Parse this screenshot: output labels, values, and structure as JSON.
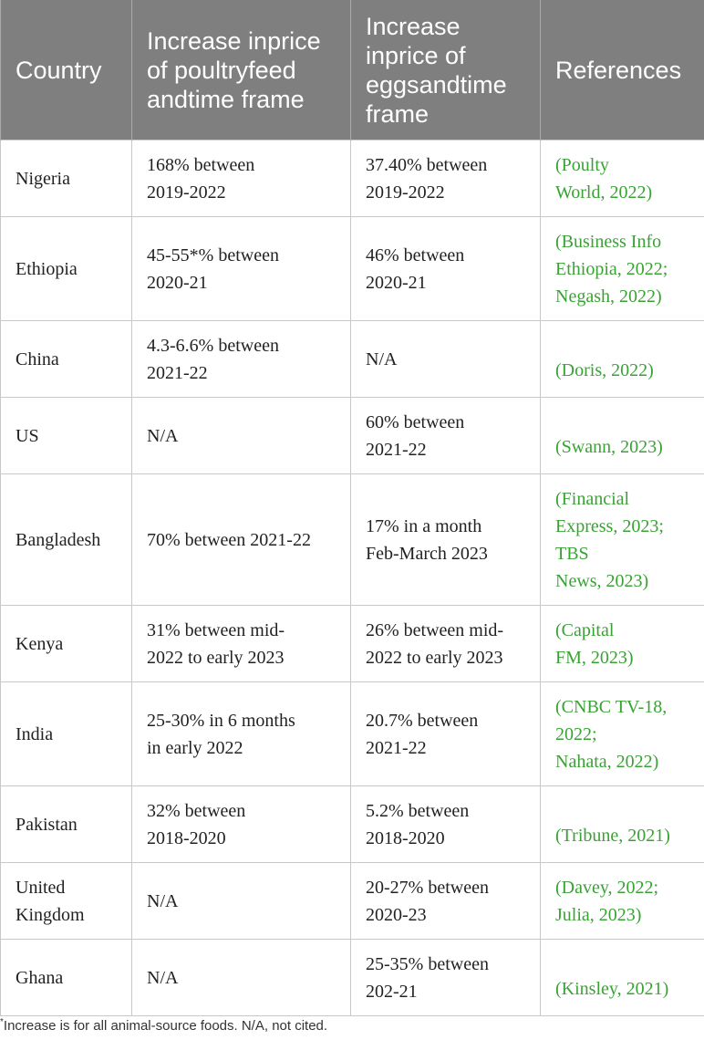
{
  "table": {
    "headers": [
      [
        "Country"
      ],
      [
        "Increase in",
        "price of poultry",
        "feed and",
        "time frame"
      ],
      [
        "Increase in",
        "price of eggs",
        "and",
        "time frame"
      ],
      [
        "References"
      ]
    ],
    "rows": [
      {
        "country": [
          "Nigeria"
        ],
        "feed": [
          "168% between",
          "2019-2022"
        ],
        "eggs": [
          "37.40% between",
          "2019-2022"
        ],
        "refs": [
          "(Poulty",
          "World, 2022)"
        ],
        "height": 84,
        "ref_valign": "middle"
      },
      {
        "country": [
          "Ethiopia"
        ],
        "feed": [
          "45-55*% between",
          "2020-21"
        ],
        "eggs": [
          "46% between",
          "2020-21"
        ],
        "refs": [
          "(Business Info",
          "Ethiopia, 2022;",
          "Negash, 2022)"
        ],
        "height": 114,
        "ref_valign": "middle"
      },
      {
        "country": [
          "China"
        ],
        "feed": [
          "4.3-6.6% between",
          "2021-22"
        ],
        "eggs": [
          "N/A"
        ],
        "refs": [
          "(Doris, 2022)"
        ],
        "height": 84,
        "ref_valign": "bottom"
      },
      {
        "country": [
          "US"
        ],
        "feed": [
          "N/A"
        ],
        "eggs": [
          "60% between",
          "2021-22"
        ],
        "refs": [
          "(Swann, 2023)"
        ],
        "height": 84,
        "ref_valign": "bottom"
      },
      {
        "country": [
          "Bangladesh"
        ],
        "feed": [
          "70% between 2021-22"
        ],
        "eggs": [
          "17% in a month",
          "Feb-March 2023"
        ],
        "refs": [
          "(Financial",
          "Express, 2023;",
          "TBS",
          "News, 2023)"
        ],
        "height": 144,
        "ref_valign": "middle"
      },
      {
        "country": [
          "Kenya"
        ],
        "feed": [
          "31% between mid-",
          "2022 to early 2023"
        ],
        "eggs": [
          "26% between mid-",
          "2022 to early 2023"
        ],
        "refs": [
          "(Capital",
          "FM, 2023)"
        ],
        "height": 84,
        "ref_valign": "middle"
      },
      {
        "country": [
          "India"
        ],
        "feed": [
          "25-30% in 6 months",
          "in early 2022"
        ],
        "eggs": [
          "20.7% between",
          "2021-22"
        ],
        "refs": [
          "(CNBC TV-18,",
          "2022;",
          "Nahata, 2022)"
        ],
        "height": 114,
        "ref_valign": "middle"
      },
      {
        "country": [
          "Pakistan"
        ],
        "feed": [
          "32% between",
          "2018-2020"
        ],
        "eggs": [
          "5.2% between",
          "2018-2020"
        ],
        "refs": [
          "(Tribune, 2021)"
        ],
        "height": 84,
        "ref_valign": "bottom"
      },
      {
        "country": [
          "United",
          "Kingdom"
        ],
        "feed": [
          "N/A"
        ],
        "eggs": [
          "20-27% between",
          "2020-23"
        ],
        "refs": [
          "(Davey, 2022;",
          "Julia, 2023)"
        ],
        "height": 84,
        "ref_valign": "middle"
      },
      {
        "country": [
          "Ghana"
        ],
        "feed": [
          "N/A"
        ],
        "eggs": [
          "25-35% between",
          "202-21"
        ],
        "refs": [
          "(Kinsley, 2021)"
        ],
        "height": 84,
        "ref_valign": "bottom"
      }
    ]
  },
  "footnote": {
    "marker": "*",
    "text": "Increase is for all animal-source foods. N/A, not cited."
  },
  "colors": {
    "header_bg": "#7f7f7f",
    "header_text": "#ffffff",
    "reference_link": "#3aa235",
    "border": "#c8c8c8"
  }
}
